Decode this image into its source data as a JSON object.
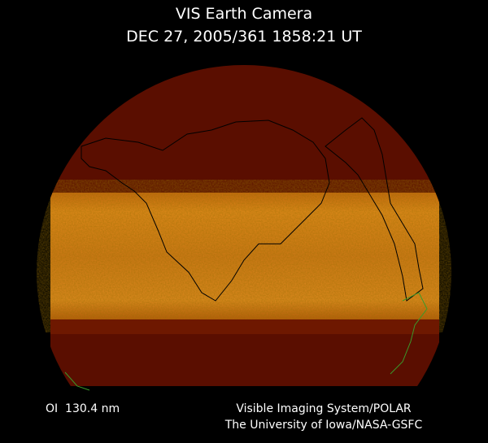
{
  "header": {
    "title": "VIS Earth Camera",
    "timestamp": "DEC 27, 2005/361 1858:21 UT"
  },
  "footer": {
    "filter": "OI  130.4 nm",
    "instrument": "Visible Imaging System/POLAR",
    "institution": "The University of Iowa/NASA-GSFC"
  }
}
